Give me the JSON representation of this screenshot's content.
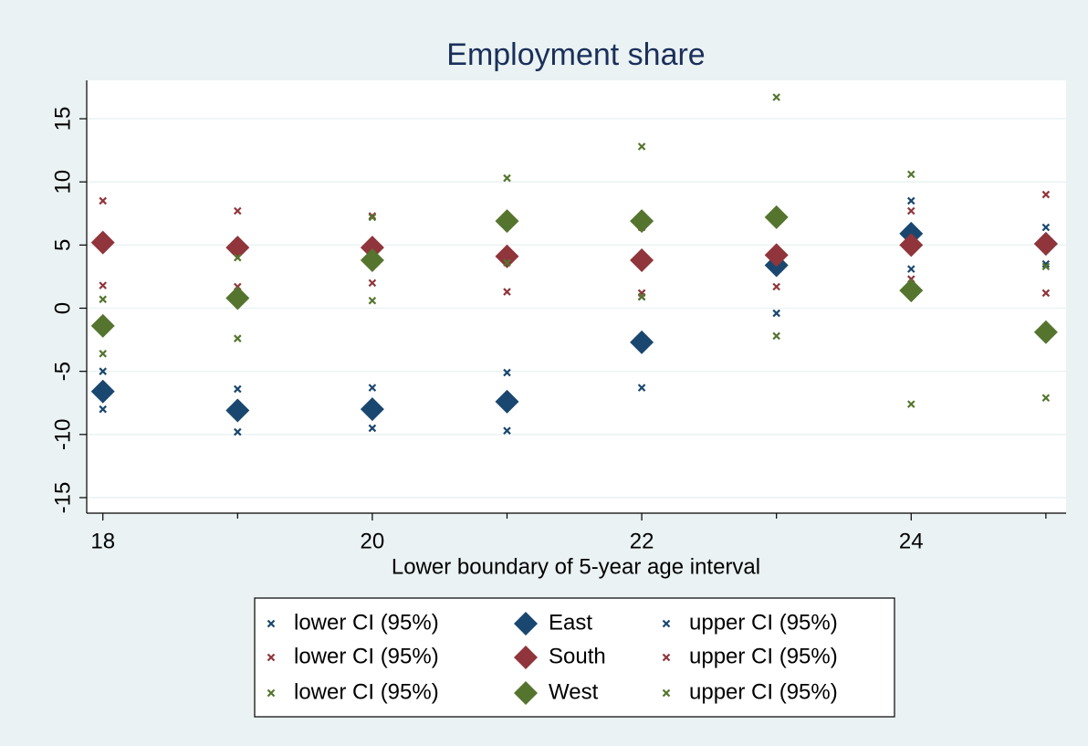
{
  "chart_data": {
    "type": "scatter",
    "title": "Employment share",
    "x_label": "Lower boundary of 5-year age interval",
    "x": [
      18,
      19,
      20,
      21,
      22,
      23,
      24,
      25
    ],
    "xlim": [
      17.88,
      25.15
    ],
    "xticks": [
      18,
      20,
      22,
      24
    ],
    "xminorticks": [
      19,
      21,
      23,
      25
    ],
    "ylim": [
      -16.23,
      18.04
    ],
    "yticks": [
      -15,
      -10,
      -5,
      0,
      5,
      10,
      15
    ],
    "grid": true,
    "legend_columns": 3,
    "series": [
      {
        "name": "lower CI (95%)",
        "color": "#1a476f",
        "marker": "x",
        "values": [
          -8.0,
          -9.8,
          -9.5,
          -9.7,
          -6.3,
          -0.4,
          3.1,
          3.5
        ]
      },
      {
        "name": "East",
        "color": "#1a476f",
        "marker": "diamond",
        "values": [
          -6.6,
          -8.1,
          -8.0,
          -7.4,
          -2.7,
          3.4,
          5.9,
          5.1
        ]
      },
      {
        "name": "upper CI (95%)",
        "color": "#1a476f",
        "marker": "x",
        "values": [
          -5.0,
          -6.4,
          -6.3,
          -5.1,
          0.9,
          7.0,
          8.5,
          6.4
        ]
      },
      {
        "name": "lower CI (95%)",
        "color": "#90353b",
        "marker": "x",
        "values": [
          1.8,
          1.7,
          2.0,
          1.3,
          1.2,
          1.7,
          2.3,
          1.2
        ]
      },
      {
        "name": "South",
        "color": "#90353b",
        "marker": "diamond",
        "values": [
          5.2,
          4.8,
          4.8,
          4.1,
          3.8,
          4.2,
          5.0,
          5.1
        ]
      },
      {
        "name": "upper CI (95%)",
        "color": "#90353b",
        "marker": "x",
        "values": [
          8.5,
          7.7,
          7.3,
          6.8,
          6.4,
          7.0,
          7.7,
          9.0
        ]
      },
      {
        "name": "lower CI (95%)",
        "color": "#55752f",
        "marker": "x",
        "values": [
          -3.6,
          -2.4,
          0.6,
          3.6,
          0.9,
          -2.2,
          -7.6,
          -7.1
        ]
      },
      {
        "name": "West",
        "color": "#55752f",
        "marker": "diamond",
        "values": [
          -1.4,
          0.8,
          3.8,
          6.9,
          6.9,
          7.2,
          1.4,
          -1.9
        ]
      },
      {
        "name": "upper CI (95%)",
        "color": "#55752f",
        "marker": "x",
        "values": [
          0.7,
          4.0,
          7.2,
          10.3,
          12.8,
          16.7,
          10.6,
          3.3
        ]
      }
    ]
  }
}
